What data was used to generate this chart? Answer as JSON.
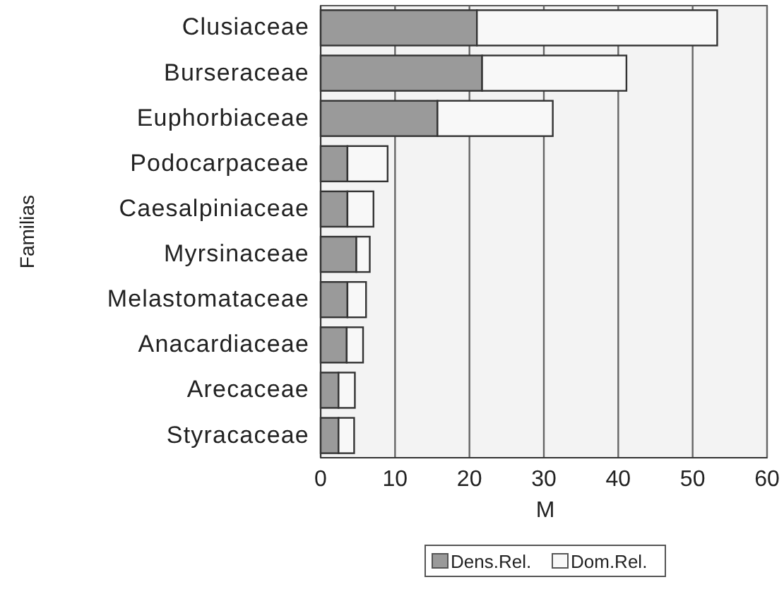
{
  "chart_data": {
    "type": "bar",
    "orientation": "horizontal",
    "stacked": true,
    "xlabel": "M",
    "ylabel": "Familias",
    "categories": [
      "Clusiaceae",
      "Burseraceae",
      "Euphorbiaceae",
      "Podocarpaceae",
      "Caesalpiniaceae",
      "Myrsinaceae",
      "Melastomataceae",
      "Anacardiaceae",
      "Arecaceae",
      "Styracaceae"
    ],
    "series": [
      {
        "name": "Dens.Rel.",
        "color": "#9a9a9a",
        "values": [
          21,
          21.7,
          15.7,
          3.6,
          3.6,
          4.8,
          3.6,
          3.5,
          2.4,
          2.4
        ]
      },
      {
        "name": "Dom.Rel.",
        "color": "#f8f8f8",
        "values": [
          32.3,
          19.4,
          15.5,
          5.4,
          3.5,
          1.8,
          2.5,
          2.2,
          2.2,
          2.1
        ]
      }
    ],
    "xlim": [
      0,
      60
    ],
    "xticks": [
      0,
      10,
      20,
      30,
      40,
      50,
      60
    ],
    "grid": "x",
    "legend": "bottom"
  }
}
